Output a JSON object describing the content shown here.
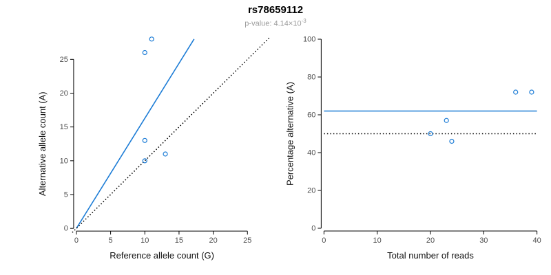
{
  "header": {
    "title": "rs78659112",
    "pvalue_label": "p-value: 4.14×10",
    "pvalue_exponent": "-3"
  },
  "colors": {
    "accent_blue": "#1C7CD6",
    "line_black": "#000000",
    "subtitle_gray": "#9a9a9a"
  },
  "chart_data": [
    {
      "type": "scatter",
      "title": "",
      "xlabel": "Reference allele count (G)",
      "ylabel": "Alternative allele count (A)",
      "xticks": [
        0,
        5,
        10,
        15,
        20,
        25
      ],
      "yticks": [
        0,
        5,
        10,
        15,
        20,
        25
      ],
      "xrange": [
        -1.1,
        29.1
      ],
      "yrange": [
        -1.1,
        29.1
      ],
      "grid": false,
      "points": [
        [
          10,
          26
        ],
        [
          11,
          28
        ],
        [
          10,
          13
        ],
        [
          10,
          10
        ],
        [
          13,
          11
        ]
      ],
      "point_color": "#1C7CD6",
      "lines": [
        {
          "name": "fit-line",
          "color": "#1C7CD6",
          "dashed": false,
          "from": [
            0,
            0
          ],
          "to": [
            17.2,
            28
          ]
        },
        {
          "name": "identity-line",
          "color": "#000000",
          "dashed": true,
          "from": [
            -0.6,
            -0.6
          ],
          "to": [
            28.3,
            28.3
          ]
        }
      ]
    },
    {
      "type": "scatter",
      "title": "",
      "xlabel": "Total number of reads",
      "ylabel": "Percentage alternative (A)",
      "xticks": [
        0,
        10,
        20,
        30,
        40
      ],
      "yticks": [
        0,
        20,
        40,
        60,
        80,
        100
      ],
      "xrange": [
        -1.6,
        41.6
      ],
      "yrange": [
        -4,
        104
      ],
      "grid": false,
      "points": [
        [
          36,
          72
        ],
        [
          39,
          72
        ],
        [
          23,
          57
        ],
        [
          20,
          50
        ],
        [
          24,
          46
        ]
      ],
      "point_color": "#1C7CD6",
      "lines": [
        {
          "name": "mean-percentage-line",
          "color": "#1C7CD6",
          "dashed": false,
          "from": [
            0,
            62
          ],
          "to": [
            40,
            62
          ]
        },
        {
          "name": "expected-50-percent-line",
          "color": "#000000",
          "dashed": true,
          "from": [
            0,
            50
          ],
          "to": [
            40,
            50
          ]
        }
      ]
    }
  ]
}
